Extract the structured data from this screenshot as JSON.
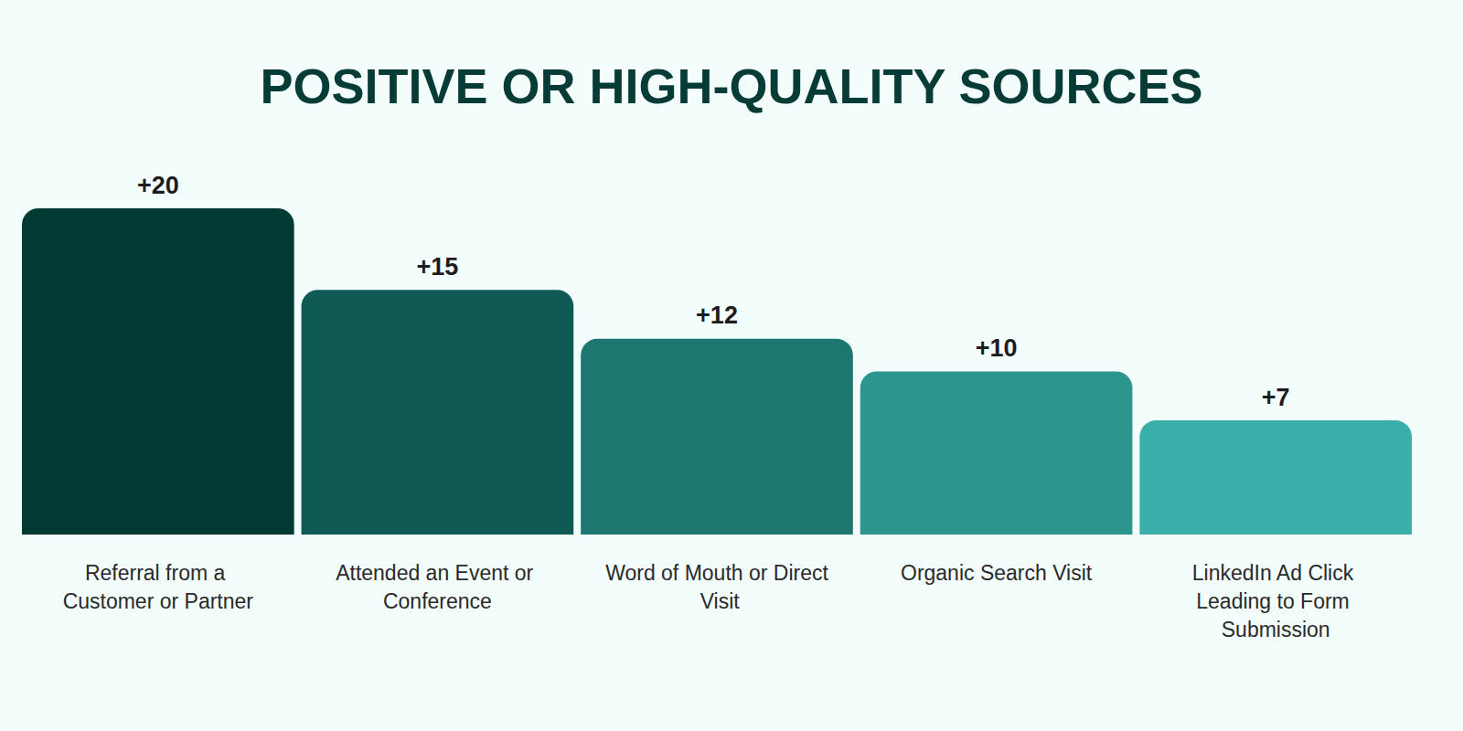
{
  "chart_data": {
    "type": "bar",
    "title": "POSITIVE OR HIGH-QUALITY SOURCES",
    "categories": [
      "Referral from a Customer or Partner",
      "Attended an Event or Conference",
      "Word of Mouth or Direct Visit",
      "Organic Search Visit",
      "LinkedIn Ad Click Leading to Form Submission"
    ],
    "values": [
      20,
      15,
      12,
      10,
      7
    ],
    "value_labels": [
      "+20",
      "+15",
      "+12",
      "+10",
      "+7"
    ],
    "colors": [
      "#013a32",
      "#0f5a54",
      "#1e7670",
      "#2c958d",
      "#3aafa9"
    ],
    "ylim": [
      0,
      20
    ],
    "grid": false,
    "data_labels": true,
    "tick_labels": "x"
  }
}
